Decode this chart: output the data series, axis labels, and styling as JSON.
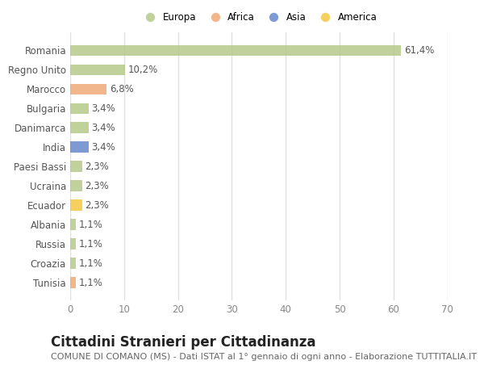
{
  "categories": [
    "Romania",
    "Regno Unito",
    "Marocco",
    "Bulgaria",
    "Danimarca",
    "India",
    "Paesi Bassi",
    "Ucraina",
    "Ecuador",
    "Albania",
    "Russia",
    "Croazia",
    "Tunisia"
  ],
  "values": [
    61.4,
    10.2,
    6.8,
    3.4,
    3.4,
    3.4,
    2.3,
    2.3,
    2.3,
    1.1,
    1.1,
    1.1,
    1.1
  ],
  "labels": [
    "61,4%",
    "10,2%",
    "6,8%",
    "3,4%",
    "3,4%",
    "3,4%",
    "2,3%",
    "2,3%",
    "2,3%",
    "1,1%",
    "1,1%",
    "1,1%",
    "1,1%"
  ],
  "colors": [
    "#b5c98a",
    "#b5c98a",
    "#f0aa78",
    "#b5c98a",
    "#b5c98a",
    "#6688cc",
    "#b5c98a",
    "#b5c98a",
    "#f5c842",
    "#b5c98a",
    "#b5c98a",
    "#b5c98a",
    "#f0aa78"
  ],
  "legend": [
    {
      "label": "Europa",
      "color": "#b5c98a"
    },
    {
      "label": "Africa",
      "color": "#f0aa78"
    },
    {
      "label": "Asia",
      "color": "#6688cc"
    },
    {
      "label": "America",
      "color": "#f5c842"
    }
  ],
  "xlim": [
    0,
    70
  ],
  "xticks": [
    0,
    10,
    20,
    30,
    40,
    50,
    60,
    70
  ],
  "title": "Cittadini Stranieri per Cittadinanza",
  "subtitle": "COMUNE DI COMANO (MS) - Dati ISTAT al 1° gennaio di ogni anno - Elaborazione TUTTITALIA.IT",
  "background_color": "#ffffff",
  "grid_color": "#e0e0e0",
  "bar_height": 0.55,
  "label_fontsize": 8.5,
  "tick_fontsize": 8.5,
  "title_fontsize": 12,
  "subtitle_fontsize": 8
}
